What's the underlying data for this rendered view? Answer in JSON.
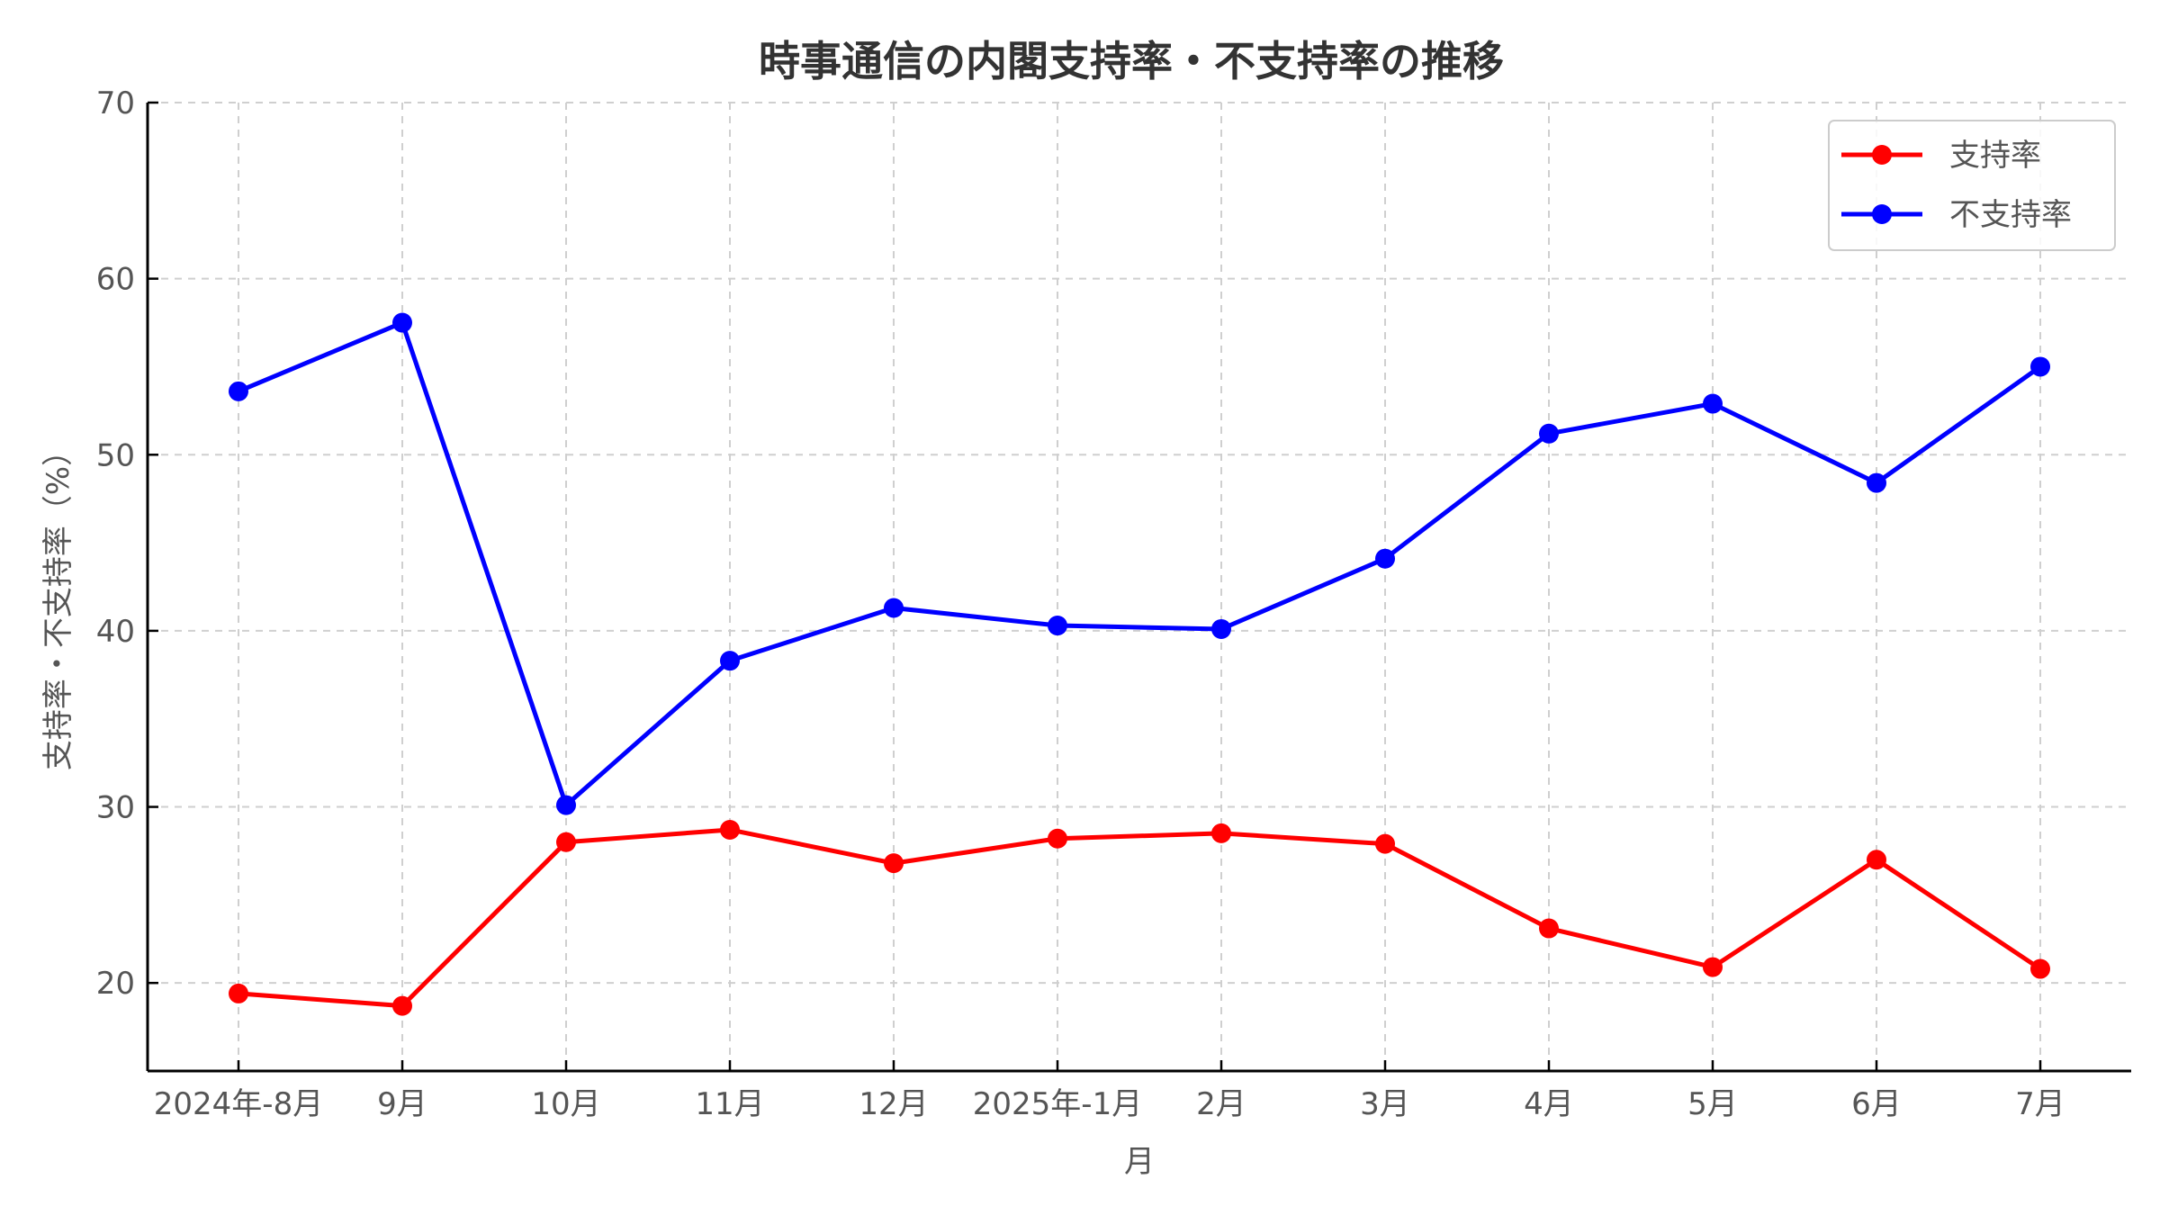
{
  "chart_data": {
    "type": "line",
    "title": "時事通信の内閣支持率・不支持率の推移",
    "xlabel": "月",
    "ylabel": "支持率・不支持率（%）",
    "categories": [
      "2024年-8月",
      "9月",
      "10月",
      "11月",
      "12月",
      "2025年-1月",
      "2月",
      "3月",
      "4月",
      "5月",
      "6月",
      "7月"
    ],
    "ylim": [
      15,
      70
    ],
    "yticks": [
      20,
      30,
      40,
      50,
      60,
      70
    ],
    "grid": true,
    "legend_position": "top-right",
    "series": [
      {
        "name": "支持率",
        "color": "#ff0000",
        "values": [
          19.4,
          18.7,
          28.0,
          28.7,
          26.8,
          28.2,
          28.5,
          27.9,
          23.1,
          20.9,
          27.0,
          20.8
        ]
      },
      {
        "name": "不支持率",
        "color": "#0000ff",
        "values": [
          53.6,
          57.5,
          30.1,
          38.3,
          41.3,
          40.3,
          40.1,
          44.1,
          51.2,
          52.9,
          48.4,
          55.0
        ]
      }
    ]
  }
}
